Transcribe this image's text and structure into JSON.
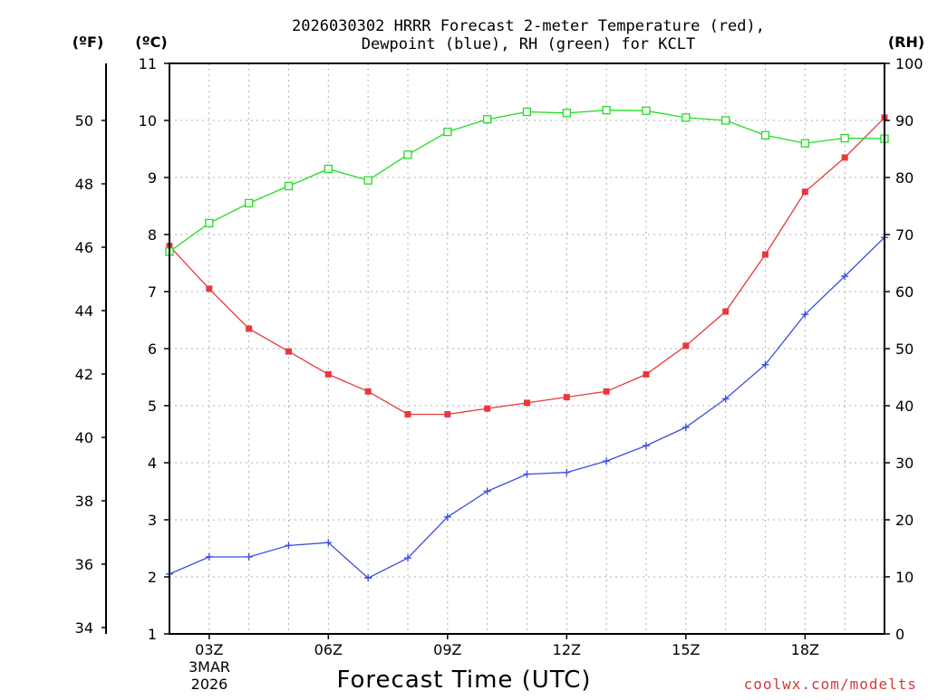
{
  "chart_data": {
    "type": "line",
    "title": [
      "2026030302 HRRR Forecast 2-meter Temperature (red),",
      "Dewpoint (blue), RH (green) for KCLT"
    ],
    "xlabel": "Forecast Time (UTC)",
    "credit": "coolwx.com/modelts",
    "date_labels": [
      "3MAR",
      "2026"
    ],
    "units": {
      "fahrenheit": "(ºF)",
      "celsius": "(ºC)",
      "rh": "(RH)"
    },
    "x": [
      2,
      3,
      4,
      5,
      6,
      7,
      8,
      9,
      10,
      11,
      12,
      13,
      14,
      15,
      16,
      17,
      18,
      19,
      20
    ],
    "xlim": [
      2,
      20
    ],
    "xticks": [
      {
        "value": 3,
        "label": "03Z"
      },
      {
        "value": 6,
        "label": "06Z"
      },
      {
        "value": 9,
        "label": "09Z"
      },
      {
        "value": 12,
        "label": "12Z"
      },
      {
        "value": 15,
        "label": "15Z"
      },
      {
        "value": 18,
        "label": "18Z"
      }
    ],
    "y_celsius": {
      "label": "(ºC)",
      "ylim": [
        1,
        11
      ],
      "ticks": [
        1,
        2,
        3,
        4,
        5,
        6,
        7,
        8,
        9,
        10,
        11
      ]
    },
    "y_fahrenheit": {
      "label": "(ºF)",
      "ylim": [
        33.8,
        51.8
      ],
      "ticks": [
        34,
        36,
        38,
        40,
        42,
        44,
        46,
        48,
        50
      ]
    },
    "y_rh": {
      "label": "(RH)",
      "ylim": [
        0,
        100
      ],
      "ticks": [
        0,
        10,
        20,
        30,
        40,
        50,
        60,
        70,
        80,
        90,
        100
      ]
    },
    "series": [
      {
        "name": "Temperature",
        "axis": "celsius",
        "color": "#e8383d",
        "marker": "filled-square",
        "values": [
          7.8,
          7.05,
          6.35,
          5.95,
          5.55,
          5.25,
          4.85,
          4.85,
          4.95,
          5.05,
          5.15,
          5.25,
          5.55,
          6.05,
          6.65,
          7.65,
          8.75,
          9.35,
          10.05
        ]
      },
      {
        "name": "Dewpoint",
        "axis": "celsius",
        "color": "#3a50e0",
        "marker": "plus",
        "values": [
          2.05,
          2.35,
          2.35,
          2.55,
          2.6,
          1.98,
          2.33,
          3.05,
          3.5,
          3.8,
          3.83,
          4.03,
          4.3,
          4.62,
          5.12,
          5.72,
          6.6,
          7.27,
          7.95
        ]
      },
      {
        "name": "RH",
        "axis": "rh",
        "color": "#22dd22",
        "marker": "open-square",
        "values": [
          67,
          72,
          75.5,
          78.5,
          81.5,
          79.5,
          84,
          88,
          90.2,
          91.5,
          91.3,
          91.8,
          91.7,
          90.5,
          90,
          87.4,
          86,
          86.9,
          86.8
        ]
      }
    ]
  }
}
